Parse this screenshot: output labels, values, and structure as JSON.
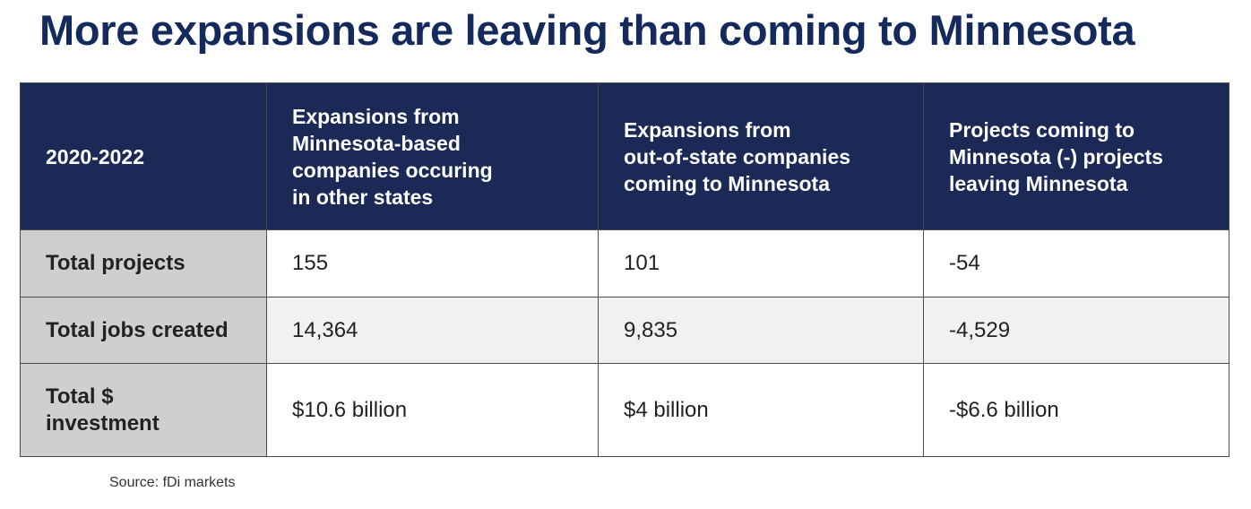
{
  "title": "More expansions are leaving than coming to Minnesota",
  "chart_data": {
    "type": "table",
    "columns": [
      [
        "2020-2022"
      ],
      [
        "Expansions from",
        "Minnesota-based",
        "companies occuring",
        "in other states"
      ],
      [
        "Expansions from",
        "out-of-state companies",
        "coming to Minnesota"
      ],
      [
        "Projects coming to",
        "Minnesota (-) projects",
        "leaving Minnesota"
      ]
    ],
    "rows": [
      {
        "label": [
          "Total projects"
        ],
        "values": [
          "155",
          "101",
          "-54"
        ]
      },
      {
        "label": [
          "Total jobs created"
        ],
        "values": [
          "14,364",
          "9,835",
          "-4,529"
        ]
      },
      {
        "label": [
          "Total $",
          "investment"
        ],
        "values": [
          "$10.6 billion",
          "$4 billion",
          "-$6.6 billion"
        ]
      }
    ]
  },
  "colors": {
    "title": "#142a5c",
    "header_bg": "#1b2957",
    "label_bg": "#cfcfd0",
    "stripe_bg": "#f1f1f2"
  },
  "source": "Source: fDi markets"
}
